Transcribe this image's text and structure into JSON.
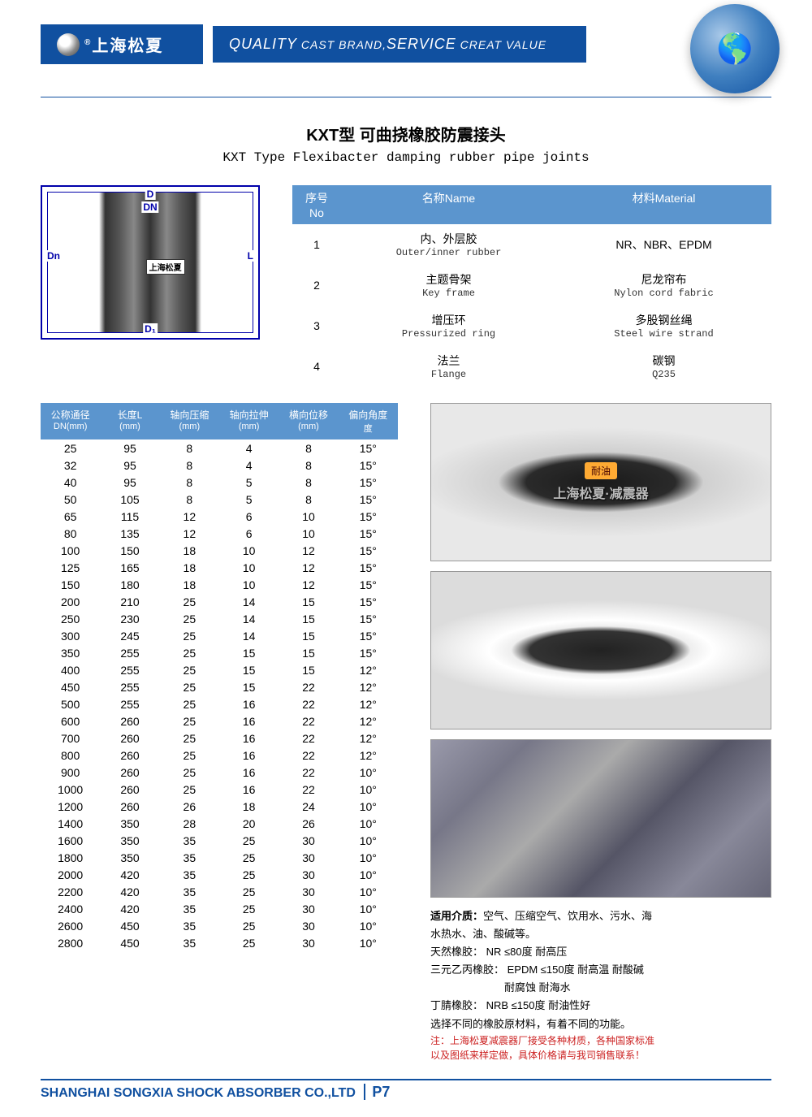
{
  "header": {
    "brand_cn": "上海松夏",
    "reg": "®",
    "slogan_html": "QUALITY CAST BRAND,SERVICE CREAT VALUE",
    "slogan_q": "QUALITY",
    "slogan_cb": " CAST BRAND,",
    "slogan_s": "SERVICE",
    "slogan_cv": " CREAT VALUE"
  },
  "title_cn": "KXT型 可曲挠橡胶防震接头",
  "title_en": "KXT Type Flexibacter damping rubber pipe joints",
  "diagram": {
    "D": "D",
    "DN": "DN",
    "Dn": "Dn",
    "L": "L",
    "D1": "D₁",
    "brand": "上海松夏"
  },
  "materials": {
    "columns": {
      "no": "序号No",
      "name": "名称Name",
      "mat": "材料Material"
    },
    "rows": [
      {
        "no": "1",
        "name_cn": "内、外层胶",
        "name_en": "Outer/inner rubber",
        "mat_cn": "NR、NBR、EPDM",
        "mat_en": ""
      },
      {
        "no": "2",
        "name_cn": "主题骨架",
        "name_en": "Key frame",
        "mat_cn": "尼龙帘布",
        "mat_en": "Nylon cord fabric"
      },
      {
        "no": "3",
        "name_cn": "增压环",
        "name_en": "Pressurized ring",
        "mat_cn": "多股钢丝绳",
        "mat_en": "Steel wire strand"
      },
      {
        "no": "4",
        "name_cn": "法兰",
        "name_en": "Flange",
        "mat_cn": "碳钢",
        "mat_en": "Q235"
      }
    ]
  },
  "spec": {
    "columns": [
      {
        "cn": "公称通径",
        "unit": "DN(mm)"
      },
      {
        "cn": "长度L",
        "unit": "(mm)"
      },
      {
        "cn": "轴向压缩",
        "unit": "(mm)"
      },
      {
        "cn": "轴向拉伸",
        "unit": "(mm)"
      },
      {
        "cn": "横向位移",
        "unit": "(mm)"
      },
      {
        "cn": "偏向角度",
        "unit": "度"
      }
    ],
    "rows": [
      [
        "25",
        "95",
        "8",
        "4",
        "8",
        "15°"
      ],
      [
        "32",
        "95",
        "8",
        "4",
        "8",
        "15°"
      ],
      [
        "40",
        "95",
        "8",
        "5",
        "8",
        "15°"
      ],
      [
        "50",
        "105",
        "8",
        "5",
        "8",
        "15°"
      ],
      [
        "65",
        "115",
        "12",
        "6",
        "10",
        "15°"
      ],
      [
        "80",
        "135",
        "12",
        "6",
        "10",
        "15°"
      ],
      [
        "100",
        "150",
        "18",
        "10",
        "12",
        "15°"
      ],
      [
        "125",
        "165",
        "18",
        "10",
        "12",
        "15°"
      ],
      [
        "150",
        "180",
        "18",
        "10",
        "12",
        "15°"
      ],
      [
        "200",
        "210",
        "25",
        "14",
        "15",
        "15°"
      ],
      [
        "250",
        "230",
        "25",
        "14",
        "15",
        "15°"
      ],
      [
        "300",
        "245",
        "25",
        "14",
        "15",
        "15°"
      ],
      [
        "350",
        "255",
        "25",
        "15",
        "15",
        "15°"
      ],
      [
        "400",
        "255",
        "25",
        "15",
        "15",
        "12°"
      ],
      [
        "450",
        "255",
        "25",
        "15",
        "22",
        "12°"
      ],
      [
        "500",
        "255",
        "25",
        "16",
        "22",
        "12°"
      ],
      [
        "600",
        "260",
        "25",
        "16",
        "22",
        "12°"
      ],
      [
        "700",
        "260",
        "25",
        "16",
        "22",
        "12°"
      ],
      [
        "800",
        "260",
        "25",
        "16",
        "22",
        "12°"
      ],
      [
        "900",
        "260",
        "25",
        "16",
        "22",
        "10°"
      ],
      [
        "1000",
        "260",
        "25",
        "16",
        "22",
        "10°"
      ],
      [
        "1200",
        "260",
        "26",
        "18",
        "24",
        "10°"
      ],
      [
        "1400",
        "350",
        "28",
        "20",
        "26",
        "10°"
      ],
      [
        "1600",
        "350",
        "35",
        "25",
        "30",
        "10°"
      ],
      [
        "1800",
        "350",
        "35",
        "25",
        "30",
        "10°"
      ],
      [
        "2000",
        "420",
        "35",
        "25",
        "30",
        "10°"
      ],
      [
        "2200",
        "420",
        "35",
        "25",
        "30",
        "10°"
      ],
      [
        "2400",
        "420",
        "35",
        "25",
        "30",
        "10°"
      ],
      [
        "2600",
        "450",
        "35",
        "25",
        "30",
        "10°"
      ],
      [
        "2800",
        "450",
        "35",
        "25",
        "30",
        "10°"
      ]
    ]
  },
  "photo1": {
    "tag": "耐油",
    "text": "上海松夏·减震器"
  },
  "notes": {
    "l1a": "适用介质：",
    "l1b": "空气、压缩空气、饮用水、污水、海",
    "l2": "水热水、油、酸碱等。",
    "l3": "天然橡胶： NR  ≤80度  耐高压",
    "l4": "三元乙丙橡胶： EPDM  ≤150度 耐高温 耐酸碱",
    "l5": "　　　　　　　耐腐蚀 耐海水",
    "l6": "丁腈橡胶： NRB  ≤150度 耐油性好",
    "l7": "选择不同的橡胶原材料，有着不同的功能。",
    "l8": "注：上海松夏减震器厂接受各种材质，各种国家标准",
    "l9": "以及图纸来样定做，具体价格请与我司销售联系！"
  },
  "footer": {
    "company": "SHANGHAI SONGXIA SHOCK ABSORBER CO.,LTD",
    "page": "P7"
  },
  "colors": {
    "brand_blue": "#1050a0",
    "table_header": "#5b95ce",
    "note_red": "#cc2222"
  }
}
